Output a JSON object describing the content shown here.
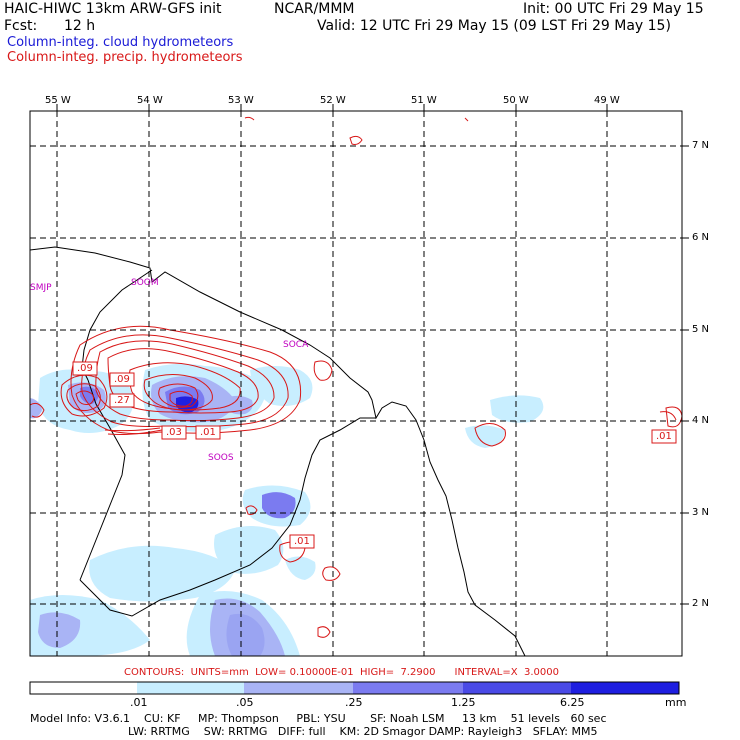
{
  "header": {
    "model": "HAIC-HIWC 13km ARW-GFS init",
    "org": "NCAR/MMM",
    "init": "Init: 00 UTC Fri 29 May 15",
    "fcst_label": "Fcst:",
    "fcst_value": "12 h",
    "valid": "Valid: 12 UTC Fri 29 May 15 (09 LST Fri 29 May 15)"
  },
  "legend": {
    "cloud": "Column-integ. cloud hydrometeors",
    "precip": "Column-integ. precip. hydrometeors",
    "cloud_color": "#1a1ad6",
    "precip_color": "#d81818"
  },
  "map": {
    "lon_labels": [
      "55 W",
      "54 W",
      "53 W",
      "52 W",
      "51 W",
      "50 W",
      "49 W"
    ],
    "lat_labels": [
      "7 N",
      "6 N",
      "5 N",
      "4 N",
      "3 N",
      "2 N"
    ],
    "stations": [
      "SMJP",
      "SOOM",
      "SOCA",
      "SOOS"
    ],
    "contour_labels": [
      ".09",
      ".09",
      ".27",
      ".03",
      ".01",
      ".01",
      ".01"
    ]
  },
  "contours_line": "CONTOURS:  UNITS=mm  LOW= 0.10000E-01  HIGH=  7.2900      INTERVAL=X  3.0000",
  "colorbar": {
    "ticks": [
      ".01",
      ".05",
      ".25",
      "1.25",
      "6.25"
    ],
    "unit": "mm",
    "colors": [
      "#ffffff",
      "#c8eeff",
      "#a9b4f5",
      "#7b7bf0",
      "#4a4ae6",
      "#1e1ee0"
    ]
  },
  "model_info": {
    "line1": "Model Info: V3.6.1    CU: KF     MP: Thompson     PBL: YSU       SF: Noah LSM     13 km    51 levels   60 sec",
    "line2": "LW: RRTMG    SW: RRTMG   DIFF: full    KM: 2D Smagor DAMP: Rayleigh3   SFLAY: MM5"
  }
}
